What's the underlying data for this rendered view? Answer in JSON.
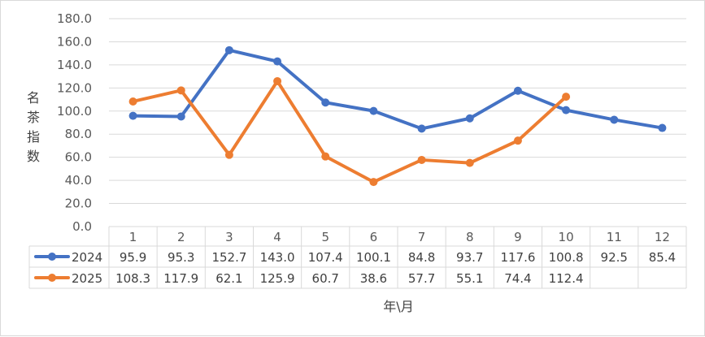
{
  "chart_data": {
    "type": "line",
    "title": "",
    "xlabel": "年\\月",
    "ylabel": "名茶指数",
    "ylim": [
      0,
      180
    ],
    "ytick_step": 20,
    "ytick_labels": [
      "0.0",
      "20.0",
      "40.0",
      "60.0",
      "80.0",
      "100.0",
      "120.0",
      "140.0",
      "160.0",
      "180.0"
    ],
    "grid": true,
    "legend": "data-table",
    "categories": [
      "1",
      "2",
      "3",
      "4",
      "5",
      "6",
      "7",
      "8",
      "9",
      "10",
      "11",
      "12"
    ],
    "series": [
      {
        "name": "2024",
        "color": "#4472C4",
        "values": [
          95.9,
          95.3,
          152.7,
          143.0,
          107.4,
          100.1,
          84.8,
          93.7,
          117.6,
          100.8,
          92.5,
          85.4
        ],
        "labels": [
          "95.9",
          "95.3",
          "152.7",
          "143.0",
          "107.4",
          "100.1",
          "84.8",
          "93.7",
          "117.6",
          "100.8",
          "92.5",
          "85.4"
        ]
      },
      {
        "name": "2025",
        "color": "#ED7D31",
        "values": [
          108.3,
          117.9,
          62.1,
          125.9,
          60.7,
          38.6,
          57.7,
          55.1,
          74.4,
          112.4,
          null,
          null
        ],
        "labels": [
          "108.3",
          "117.9",
          "62.1",
          "125.9",
          "60.7",
          "38.6",
          "57.7",
          "55.1",
          "74.4",
          "112.4",
          "",
          ""
        ]
      }
    ]
  }
}
